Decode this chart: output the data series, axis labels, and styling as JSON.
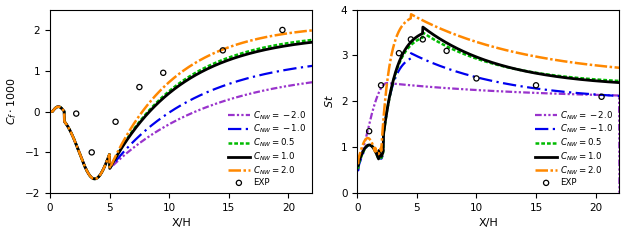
{
  "xlabel": "X/H",
  "xlim": [
    0,
    22
  ],
  "left_ylim": [
    -2,
    2.5
  ],
  "right_ylim": [
    0,
    4
  ],
  "left_yticks": [
    -2,
    -1,
    0,
    1,
    2
  ],
  "right_yticks": [
    0,
    1,
    2,
    3,
    4
  ],
  "xticks": [
    0,
    5,
    10,
    15,
    20
  ],
  "colors": {
    "m2": "#9933cc",
    "m1": "#0000ee",
    "p05": "#00bb00",
    "p1": "#000000",
    "p2": "#ff8800"
  },
  "exp_left_x": [
    2.2,
    3.5,
    5.5,
    7.5,
    9.5,
    14.5,
    19.5
  ],
  "exp_left_y": [
    -0.05,
    -1.0,
    -0.25,
    0.6,
    0.95,
    1.5,
    2.0
  ],
  "exp_right_x": [
    1.0,
    2.0,
    3.5,
    4.5,
    5.5,
    7.5,
    10.0,
    15.0,
    20.5
  ],
  "exp_right_y": [
    1.35,
    2.35,
    3.05,
    3.35,
    3.35,
    3.1,
    2.5,
    2.35,
    2.1
  ],
  "background": "#ffffff"
}
